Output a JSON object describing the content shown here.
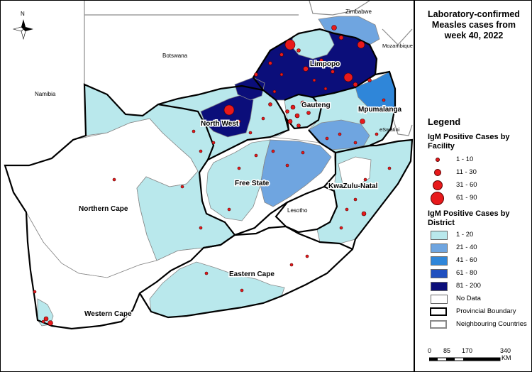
{
  "title": {
    "line1": "Laboratory-confirmed",
    "line2": "Measles cases from",
    "line3": "week 40, 2022"
  },
  "legend": {
    "heading": "Legend",
    "facility_title_1": "IgM Positive Cases by",
    "facility_title_2": "Facility",
    "facility_classes": [
      "1 - 10",
      "11 - 30",
      "31 - 60",
      "61 - 90"
    ],
    "district_title_1": "IgM Positive Cases by",
    "district_title_2": "District",
    "district_classes": [
      "1 - 20",
      "21 - 40",
      "41 - 60",
      "61 - 80",
      "81 - 200",
      "No Data"
    ],
    "district_colors": [
      "#b9e8ec",
      "#6fa5e0",
      "#2f86d9",
      "#1f4fbf",
      "#0b0e7a",
      "#ffffff"
    ],
    "provincial_boundary": "Provincial Boundary",
    "neighbouring_countries": "Neighbouring Countries"
  },
  "scale": {
    "ticks": [
      "0",
      "85",
      "170",
      "340"
    ],
    "unit": "KM"
  },
  "map": {
    "north_label": "N",
    "countries": {
      "zimbabwe": "Zimbabwe",
      "mozambique": "Mozambique",
      "botswana": "Botswana",
      "namibia": "Namibia",
      "eswatini": "eSwatini",
      "lesotho": "Lesotho"
    },
    "provinces": {
      "limpopo": "Limpopo",
      "gauteng": "Gauteng",
      "mpumalanga": "Mpumalanga",
      "north_west": "North West",
      "free_state": "Free State",
      "kwazulu_natal": "KwaZulu-Natal",
      "northern_cape": "Northern Cape",
      "eastern_cape": "Eastern Cape",
      "western_cape": "Western Cape"
    }
  }
}
